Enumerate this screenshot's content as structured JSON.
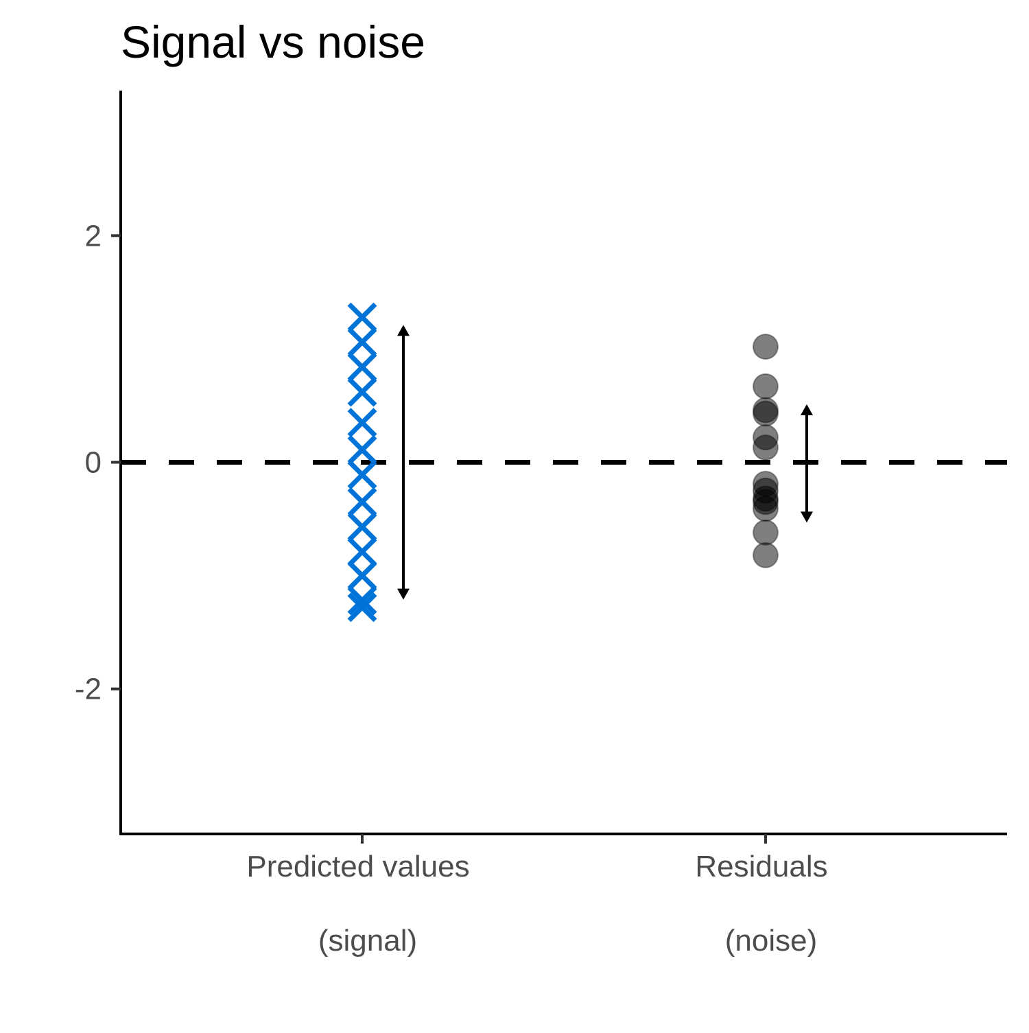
{
  "chart_data": {
    "type": "scatter",
    "title": "Signal vs noise",
    "xlabel": "",
    "ylabel": "",
    "ylim": [
      -3.28,
      3.28
    ],
    "y_ticks": [
      -2,
      0,
      2
    ],
    "y_tick_labels": [
      "-2",
      "0",
      "2"
    ],
    "grid": false,
    "legend": "none",
    "reference_line": {
      "y": 0,
      "style": "dashed",
      "color": "#000000"
    },
    "categories": [
      {
        "line1": "Predicted values",
        "line2": "(signal)"
      },
      {
        "line1": "Residuals",
        "line2": "(noise)"
      }
    ],
    "series": [
      {
        "category_index": 0,
        "marker": "x",
        "color": "#0073d9",
        "values": [
          1.28,
          1.06,
          0.84,
          0.62,
          0.35,
          0.11,
          -0.11,
          -0.35,
          -0.57,
          -0.79,
          -1.0,
          -1.22,
          -1.28
        ],
        "spread_arrow": {
          "low": -1.2,
          "high": 1.2
        }
      },
      {
        "category_index": 1,
        "marker": "circle",
        "color": "#000000",
        "opacity": 0.5,
        "values": [
          1.02,
          0.67,
          0.46,
          0.43,
          0.22,
          0.13,
          -0.19,
          -0.25,
          -0.32,
          -0.35,
          -0.41,
          -0.62,
          -0.82
        ],
        "spread_arrow": {
          "low": -0.52,
          "high": 0.5
        }
      }
    ]
  }
}
